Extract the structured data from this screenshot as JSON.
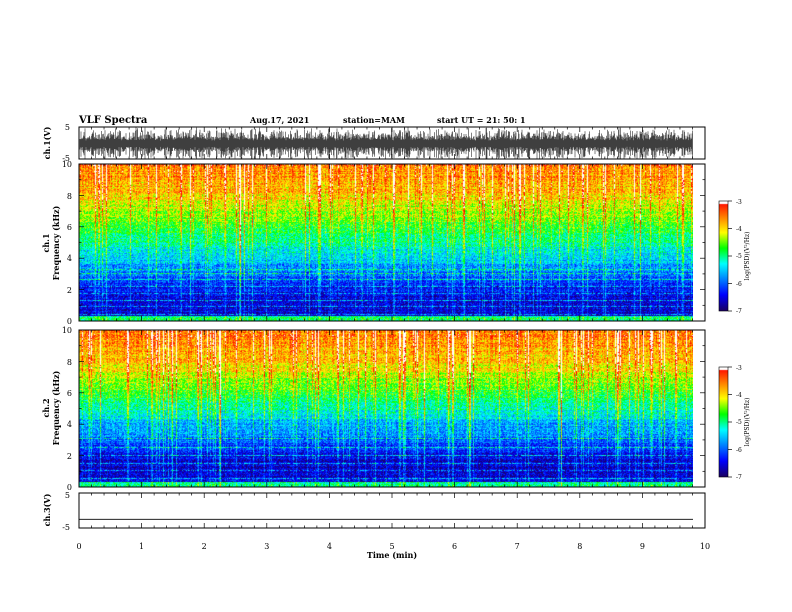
{
  "header": {
    "title": "VLF Spectra",
    "date": "Aug.17, 2021",
    "station": "station=MAM",
    "start": "start  UT  =   21: 50: 1"
  },
  "colors": {
    "spectrum_ramp": [
      "#1a0066",
      "#0000ff",
      "#0080ff",
      "#00ffff",
      "#00ff00",
      "#ffff00",
      "#ff8000",
      "#ff0000",
      "#ffffff"
    ],
    "waveform": "#000000"
  },
  "chart_data": [
    {
      "type": "line",
      "id": "ch1_waveform",
      "ylabel": "ch.1(V)",
      "ylim": [
        -5,
        5
      ],
      "yticks": [
        "5",
        "-5"
      ],
      "xlim": [
        0,
        10
      ],
      "note_values": "dense broadband impulsive waveform, amplitude reaching about ±5 V"
    },
    {
      "type": "heatmap",
      "id": "ch1_spectrogram",
      "ylabel_line1": "ch.1",
      "ylabel_line2": "Frequency  (kHz)",
      "ylim": [
        0,
        10
      ],
      "yticks": [
        "0",
        "2",
        "4",
        "6",
        "8",
        "10"
      ],
      "xlim": [
        0,
        9.85
      ],
      "colorbar": {
        "label": "log(PSD)(V²/Hz)",
        "range": [
          -7,
          -3
        ],
        "ticks": [
          "-3",
          "-4",
          "-5",
          "-6",
          "-7"
        ]
      },
      "profile_kHz_to_logPSD": [
        [
          0,
          -6.4
        ],
        [
          0.6,
          -6.6
        ],
        [
          2,
          -6.4
        ],
        [
          3,
          -5.9
        ],
        [
          4,
          -5.5
        ],
        [
          5,
          -5.1
        ],
        [
          6,
          -4.7
        ],
        [
          7,
          -4.3
        ],
        [
          8,
          -3.9
        ],
        [
          10,
          -3.5
        ]
      ],
      "tone_lines_kHz": [
        0.4,
        0.9,
        1.3,
        1.7,
        2.2,
        2.6,
        3.0,
        3.3
      ]
    },
    {
      "type": "heatmap",
      "id": "ch2_spectrogram",
      "ylabel_line1": "ch.2",
      "ylabel_line2": "Frequency  (kHz)",
      "ylim": [
        0,
        10
      ],
      "yticks": [
        "0",
        "2",
        "4",
        "6",
        "8",
        "10"
      ],
      "xlim": [
        0,
        9.85
      ],
      "colorbar": {
        "label": "log(PSD)(V²/Hz)",
        "range": [
          -7,
          -3
        ],
        "ticks": [
          "-3",
          "-4",
          "-5",
          "-6",
          "-7"
        ]
      },
      "profile_kHz_to_logPSD": [
        [
          0,
          -6.5
        ],
        [
          1,
          -6.6
        ],
        [
          2,
          -6.5
        ],
        [
          3,
          -6.0
        ],
        [
          4,
          -5.6
        ],
        [
          5,
          -5.2
        ],
        [
          6,
          -4.7
        ],
        [
          7,
          -4.3
        ],
        [
          8,
          -3.9
        ],
        [
          10,
          -3.5
        ]
      ],
      "tone_lines_kHz": [
        0.5,
        1.0,
        1.5,
        2.0,
        2.5,
        3.1
      ]
    },
    {
      "type": "line",
      "id": "ch3_waveform",
      "ylabel": "ch.3(V)",
      "ylim": [
        -5,
        5
      ],
      "yticks": [
        "5",
        "-5"
      ],
      "xlim": [
        0,
        9.85
      ],
      "y_constant": -2.5
    }
  ],
  "xaxis": {
    "label": "Time  (min)",
    "range": [
      0,
      10
    ],
    "ticks": [
      "0",
      "1",
      "2",
      "3",
      "4",
      "5",
      "6",
      "7",
      "8",
      "9",
      "10"
    ]
  }
}
